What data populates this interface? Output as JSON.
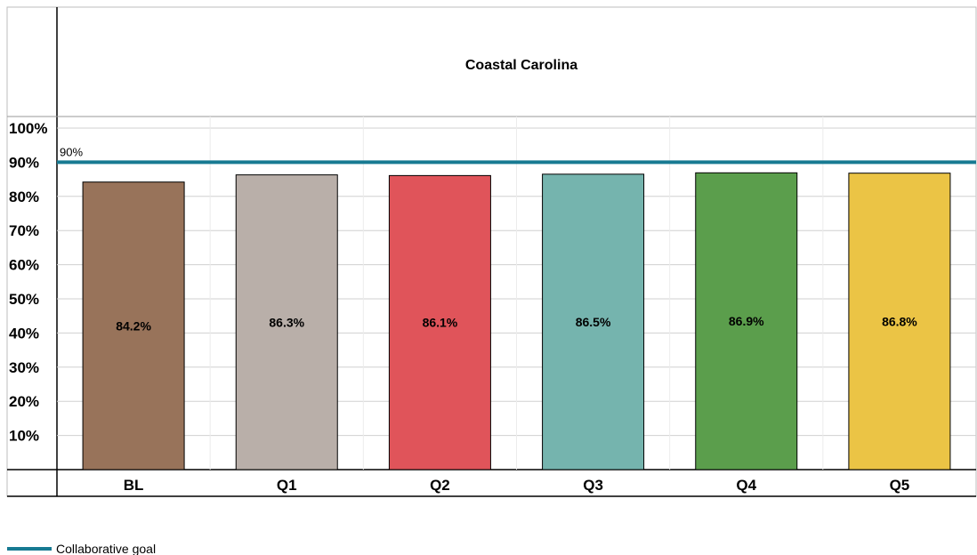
{
  "chart_data": {
    "type": "bar",
    "title": "Coastal Carolina",
    "categories": [
      "BL",
      "Q1",
      "Q2",
      "Q3",
      "Q4",
      "Q5"
    ],
    "values": [
      84.2,
      86.3,
      86.1,
      86.5,
      86.9,
      86.8
    ],
    "value_labels": [
      "84.2%",
      "86.3%",
      "86.1%",
      "86.5%",
      "86.9%",
      "86.8%"
    ],
    "bar_colors": [
      "#98735a",
      "#b9afa9",
      "#e0545a",
      "#75b4ae",
      "#5b9e4c",
      "#ebc445"
    ],
    "ylim": [
      0,
      100
    ],
    "y_ticks": [
      "100%",
      "90%",
      "80%",
      "70%",
      "60%",
      "50%",
      "40%",
      "30%",
      "20%",
      "10%"
    ],
    "y_tick_values": [
      100,
      90,
      80,
      70,
      60,
      50,
      40,
      30,
      20,
      10
    ],
    "grid": true,
    "goal": {
      "value": 90,
      "label": "90%",
      "color": "#177a92",
      "legend_label": "Collaborative goal"
    },
    "legend_position": "bottom-left"
  }
}
